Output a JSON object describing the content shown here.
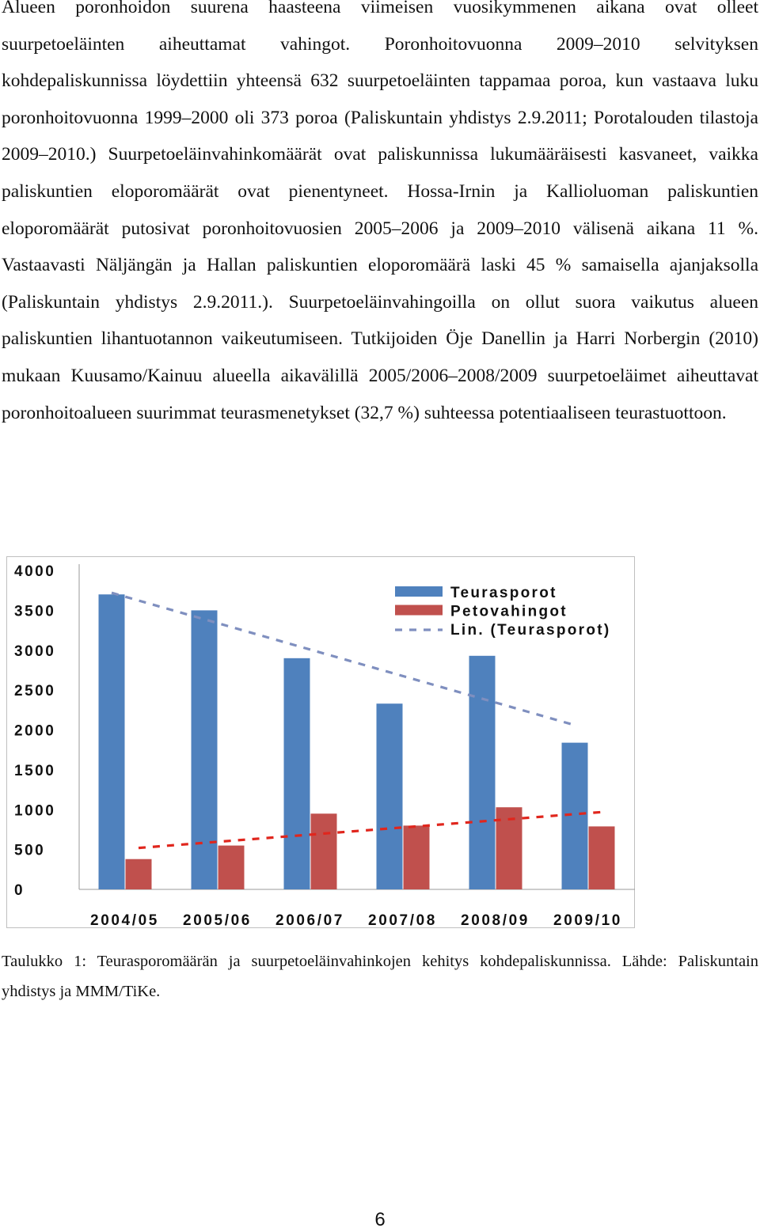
{
  "body": {
    "paragraph": "Alueen poronhoidon suurena haasteena viimeisen vuosikymmenen aikana ovat olleet suurpetoeläinten aiheuttamat vahingot. Poronhoitovuonna 2009–2010 selvityksen kohdepaliskunnissa löydettiin yhteensä 632 suurpetoeläinten tappamaa poroa, kun vastaava luku poronhoitovuonna 1999–2000 oli 373 poroa (Paliskuntain yhdistys 2.9.2011; Porotalouden tilastoja 2009–2010.) Suurpetoeläinvahinkomäärät ovat paliskunnissa lukumääräisesti kasvaneet, vaikka paliskuntien eloporomäärät ovat pienentyneet. Hossa-Irnin ja Kallioluoman paliskuntien eloporomäärät putosivat poronhoitovuosien 2005–2006 ja 2009–2010 välisenä aikana 11 %. Vastaavasti Näljängän ja Hallan paliskuntien eloporomäärä laski 45 % samaisella ajanjaksolla (Paliskuntain yhdistys 2.9.2011.). Suurpetoeläinvahingoilla on ollut suora vaikutus alueen paliskuntien lihantuotannon vaikeutumiseen. Tutkijoiden Öje Danellin ja Harri Norbergin (2010) mukaan Kuusamo/Kainuu alueella aikavälillä 2005/2006–2008/2009 suurpetoeläimet aiheuttavat poronhoitoalueen suurimmat teurasmenetykset (32,7 %) suhteessa potentiaaliseen teurastuottoon."
  },
  "chart_data": {
    "type": "bar",
    "categories": [
      "2004/05",
      "2005/06",
      "2006/07",
      "2007/08",
      "2008/09",
      "2009/10"
    ],
    "series": [
      {
        "name": "Teurasporot",
        "values": [
          3700,
          3500,
          2900,
          2330,
          2930,
          1840
        ],
        "color": "#4f81bd"
      },
      {
        "name": "Petovahingot",
        "values": [
          380,
          550,
          950,
          800,
          1030,
          790
        ],
        "color": "#c0504d"
      }
    ],
    "trendlines": [
      {
        "name": "Lin. (Teurasporot)",
        "of_series": "Teurasporot",
        "start": 3720,
        "end": 2060,
        "style": "dashed",
        "color": "#7f8fbf",
        "in_legend": true
      },
      {
        "of_series": "Petovahingot",
        "start": 520,
        "end": 970,
        "style": "dashed",
        "color": "#e0261d",
        "in_legend": false
      }
    ],
    "ylim": [
      0,
      4000
    ],
    "yticks": [
      "0",
      "500",
      "1000",
      "1500",
      "2000",
      "2500",
      "3000",
      "3500",
      "4000"
    ],
    "xlabel": "",
    "ylabel": "",
    "title": "",
    "grid": false,
    "legend_position": "top-right",
    "legend": [
      "Teurasporot",
      "Petovahingot",
      "Lin. (Teurasporot)"
    ]
  },
  "caption": "Taulukko 1: Teurasporomäärän ja suurpetoeläinvahinkojen kehitys kohdepaliskunnissa. Lähde: Paliskuntain yhdistys ja MMM/TiKe.",
  "page_number": "6"
}
